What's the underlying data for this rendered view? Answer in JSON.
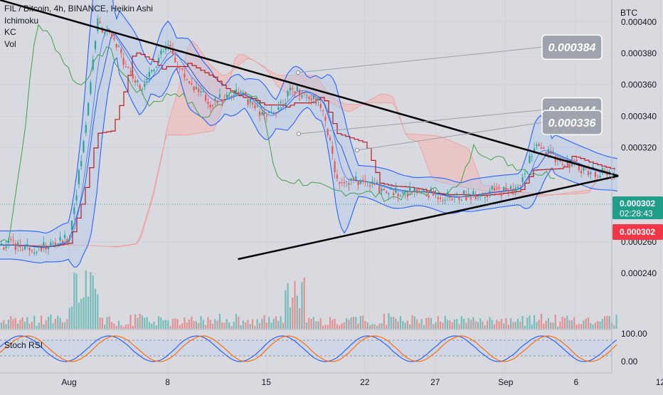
{
  "header": {
    "symbol_line": "FIL / Bitcoin, 4h, BINANCE, Heikin Ashi",
    "indicators": [
      "Ichimoku",
      "KC",
      "Vol"
    ]
  },
  "axis": {
    "currency": "BTC",
    "price_ticks": [
      "0.000400",
      "0.000380",
      "0.000360",
      "0.000340",
      "0.000320",
      "0.000260",
      "0.000240"
    ],
    "date_ticks": [
      "Aug",
      "8",
      "15",
      "22",
      "27",
      "Sep",
      "6",
      "12"
    ],
    "rsi_ticks": [
      "100.00",
      "0.00"
    ]
  },
  "price_tags": {
    "last_price": "0.000302",
    "countdown": "02:28:43",
    "close_price": "0.000302"
  },
  "callouts": [
    "0.000384",
    "0.000344",
    "0.000336"
  ],
  "panes": {
    "oscillator_title": "Stoch RSI"
  },
  "colors": {
    "background": "#d8dae0",
    "up": "#26a69a",
    "down": "#ef5350",
    "keltner": "#2962ff",
    "trendline": "#000000",
    "price_tag": "#1f9e89",
    "close_tag": "#f23645",
    "kumo": "#f5b7b1"
  },
  "chart_data": {
    "type": "candlestick",
    "title": "FIL / Bitcoin, 4h, BINANCE, Heikin Ashi",
    "y_unit": "BTC",
    "ylim": [
      0.000226,
      0.000416
    ],
    "x_labels": [
      "Aug",
      "8",
      "15",
      "22",
      "27",
      "Sep",
      "6",
      "12"
    ],
    "price_path": [
      [
        "Jul 28",
        0.000258
      ],
      [
        "Jul 30",
        0.000256
      ],
      [
        "Aug 1",
        0.000262
      ],
      [
        "Aug 2",
        0.00032
      ],
      [
        "Aug 3",
        0.0004
      ],
      [
        "Aug 4",
        0.00039
      ],
      [
        "Aug 6",
        0.000358
      ],
      [
        "Aug 8",
        0.000385
      ],
      [
        "Aug 9",
        0.000368
      ],
      [
        "Aug 11",
        0.000348
      ],
      [
        "Aug 13",
        0.000356
      ],
      [
        "Aug 15",
        0.000338
      ],
      [
        "Aug 17",
        0.000358
      ],
      [
        "Aug 19",
        0.000348
      ],
      [
        "Aug 20",
        0.0003
      ],
      [
        "Aug 22",
        0.000298
      ],
      [
        "Aug 24",
        0.000292
      ],
      [
        "Aug 26",
        0.000292
      ],
      [
        "Aug 28",
        0.000288
      ],
      [
        "Aug 31",
        0.000292
      ],
      [
        "Sep 2",
        0.000294
      ],
      [
        "Sep 3",
        0.00032
      ],
      [
        "Sep 5",
        0.000312
      ],
      [
        "Sep 7",
        0.000305
      ],
      [
        "Sep 9",
        0.000302
      ]
    ],
    "trendlines": [
      {
        "name": "descending resistance",
        "from": [
          "Jul 28",
          0.000414
        ],
        "to": [
          "Sep 9",
          0.000302
        ]
      },
      {
        "name": "ascending support",
        "from": [
          "Aug 13",
          0.000249
        ],
        "to": [
          "Sep 9",
          0.000302
        ]
      }
    ],
    "annotations": [
      "0.000384",
      "0.000344",
      "0.000336"
    ],
    "last_price": 0.000302,
    "oscillator": {
      "name": "Stoch RSI",
      "ylim": [
        0,
        100
      ]
    }
  }
}
